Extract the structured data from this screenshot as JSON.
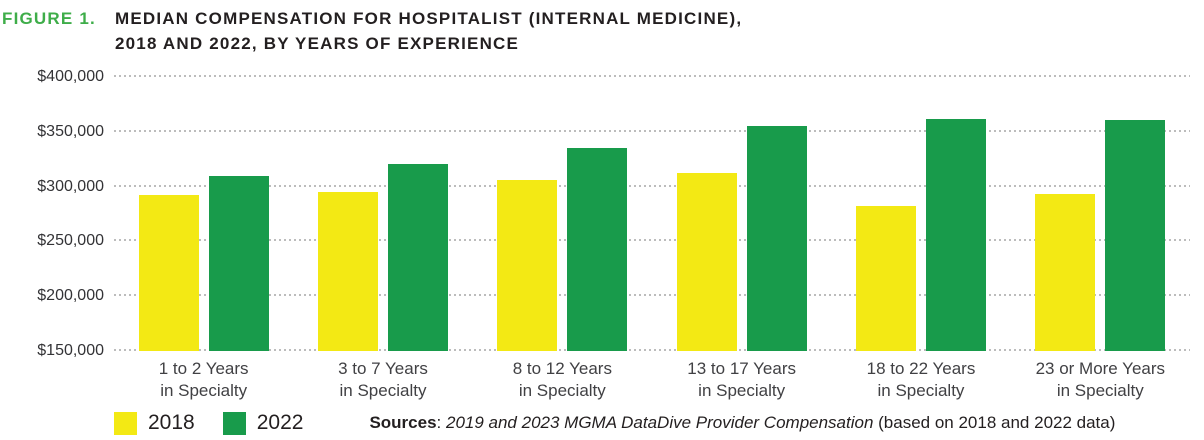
{
  "title": {
    "figure_label": "FIGURE 1.",
    "line1": "MEDIAN COMPENSATION FOR HOSPITALIST (INTERNAL MEDICINE),",
    "line2": "2018 AND 2022, BY YEARS OF EXPERIENCE"
  },
  "colors": {
    "figure_label_green": "#3ead49",
    "bar_2018_yellow": "#f3e914",
    "bar_2022_green": "#189b4b",
    "gridline_gray": "#bcbcbc",
    "title_text": "#231f20"
  },
  "chart_data": {
    "type": "bar",
    "title": "Median compensation for hospitalist (internal medicine), 2018 and 2022, by years of experience",
    "categories": [
      "1 to 2 Years",
      "3 to 7 Years",
      "8 to 12 Years",
      "13 to 17 Years",
      "18 to 22 Years",
      "23 or More Years"
    ],
    "category_subline": "in Specialty",
    "series": [
      {
        "name": "2018",
        "color": "#f3e914",
        "values": [
          292000,
          295000,
          306000,
          312000,
          282000,
          293000
        ]
      },
      {
        "name": "2022",
        "color": "#189b4b",
        "values": [
          310000,
          321000,
          335000,
          355000,
          362000,
          361000
        ]
      }
    ],
    "xlabel": "",
    "ylabel": "",
    "ylim": [
      150000,
      400000
    ],
    "ytick_step": 50000,
    "ytick_labels": [
      "$150,000",
      "$200,000",
      "$250,000",
      "$300,000",
      "$350,000",
      "$400,000"
    ],
    "grid": "horizontal dotted",
    "legend_position": "bottom-left"
  },
  "footer": {
    "sources_bold": "Sources",
    "sources_separator": ": ",
    "sources_italic": "2019 and 2023 MGMA DataDive Provider Compensation",
    "sources_regular": " (based on 2018 and 2022 data)"
  }
}
